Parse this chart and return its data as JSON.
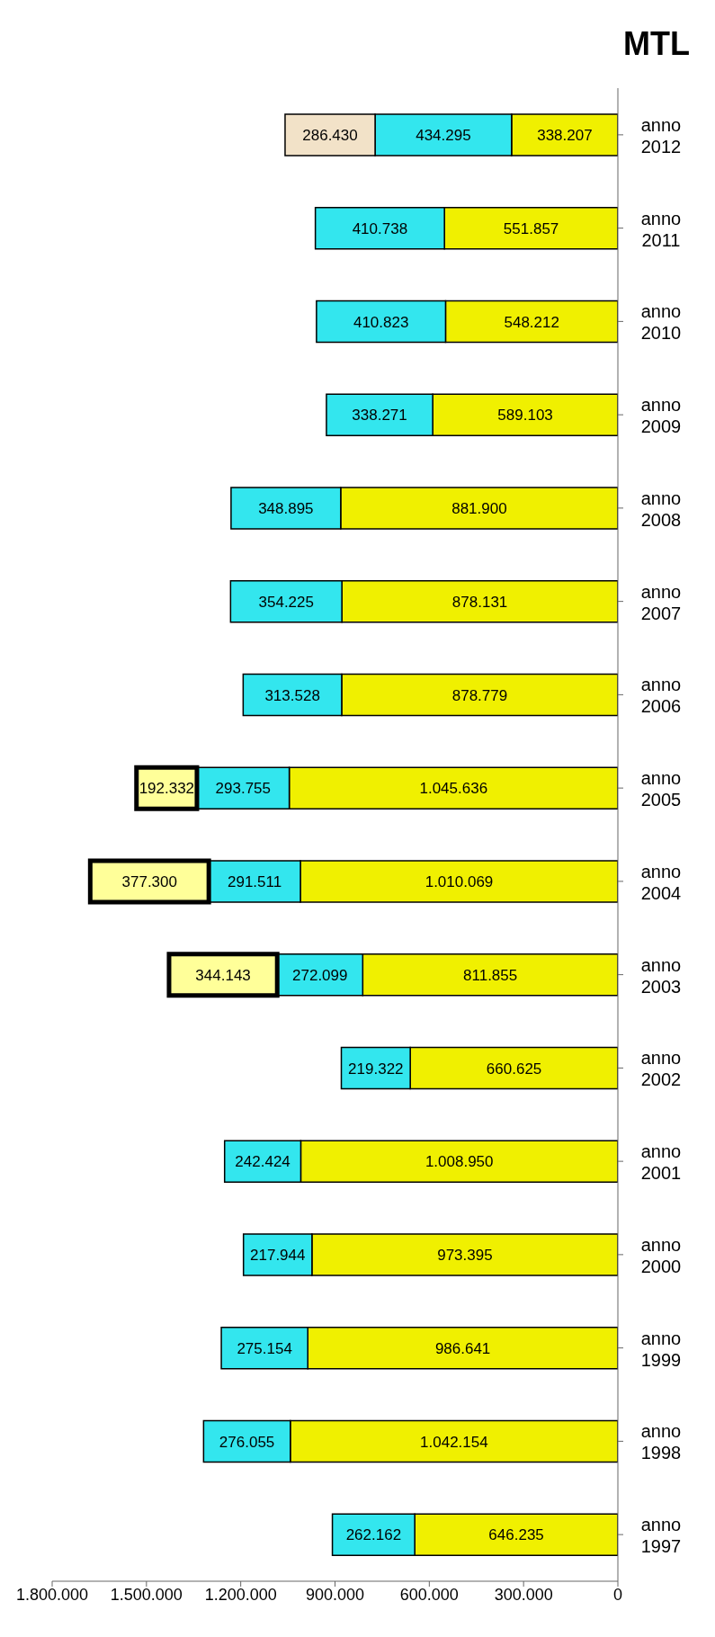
{
  "chart_data": {
    "type": "bar",
    "orientation": "horizontal",
    "title": "MTL",
    "stacked": true,
    "legend": false,
    "grid": false,
    "categories": [
      "anno 2012",
      "anno 2011",
      "anno 2010",
      "anno 2009",
      "anno 2008",
      "anno 2007",
      "anno 2006",
      "anno 2005",
      "anno 2004",
      "anno 2003",
      "anno 2002",
      "anno 2001",
      "anno 2000",
      "anno 1999",
      "anno 1998",
      "anno 1997"
    ],
    "xlim": [
      1800000,
      0
    ],
    "xticks": [
      {
        "value": 1800000,
        "label": "1.800.000"
      },
      {
        "value": 1500000,
        "label": "1.500.000"
      },
      {
        "value": 1200000,
        "label": "1.200.000"
      },
      {
        "value": 900000,
        "label": "900.000"
      },
      {
        "value": 600000,
        "label": "600.000"
      },
      {
        "value": 300000,
        "label": "300.000"
      },
      {
        "value": 0,
        "label": "0"
      }
    ],
    "series": [
      {
        "color": "#f0f000",
        "values": [
          338207,
          551857,
          548212,
          589103,
          881900,
          878131,
          878779,
          1045636,
          1010069,
          811855,
          660625,
          1008950,
          973395,
          986641,
          1042154,
          646235
        ],
        "value_labels": [
          "338.207",
          "551.857",
          "548.212",
          "589.103",
          "881.900",
          "878.131",
          "878.779",
          "1.045.636",
          "1.010.069",
          "811.855",
          "660.625",
          "1.008.950",
          "973.395",
          "986.641",
          "1.042.154",
          "646.235"
        ]
      },
      {
        "color": "#33e6ee",
        "values": [
          434295,
          410738,
          410823,
          338271,
          348895,
          354225,
          313528,
          293755,
          291511,
          272099,
          219322,
          242424,
          217944,
          275154,
          276055,
          262162
        ],
        "value_labels": [
          "434.295",
          "410.738",
          "410.823",
          "338.271",
          "348.895",
          "354.225",
          "313.528",
          "293.755",
          "291.511",
          "272.099",
          "219.322",
          "242.424",
          "217.944",
          "275.154",
          "276.055",
          "262.162"
        ]
      },
      {
        "color": "#ffff99",
        "values": [
          null,
          null,
          null,
          null,
          null,
          null,
          null,
          192332,
          377300,
          344143,
          null,
          null,
          null,
          null,
          null,
          null
        ],
        "value_labels": [
          null,
          null,
          null,
          null,
          null,
          null,
          null,
          "192.332",
          "377.300",
          "344.143",
          null,
          null,
          null,
          null,
          null,
          null
        ]
      },
      {
        "color": "#f2e2c8",
        "values": [
          286430,
          null,
          null,
          null,
          null,
          null,
          null,
          null,
          null,
          null,
          null,
          null,
          null,
          null,
          null,
          null
        ],
        "value_labels": [
          "286.430",
          null,
          null,
          null,
          null,
          null,
          null,
          null,
          null,
          null,
          null,
          null,
          null,
          null,
          null,
          null
        ]
      }
    ]
  }
}
